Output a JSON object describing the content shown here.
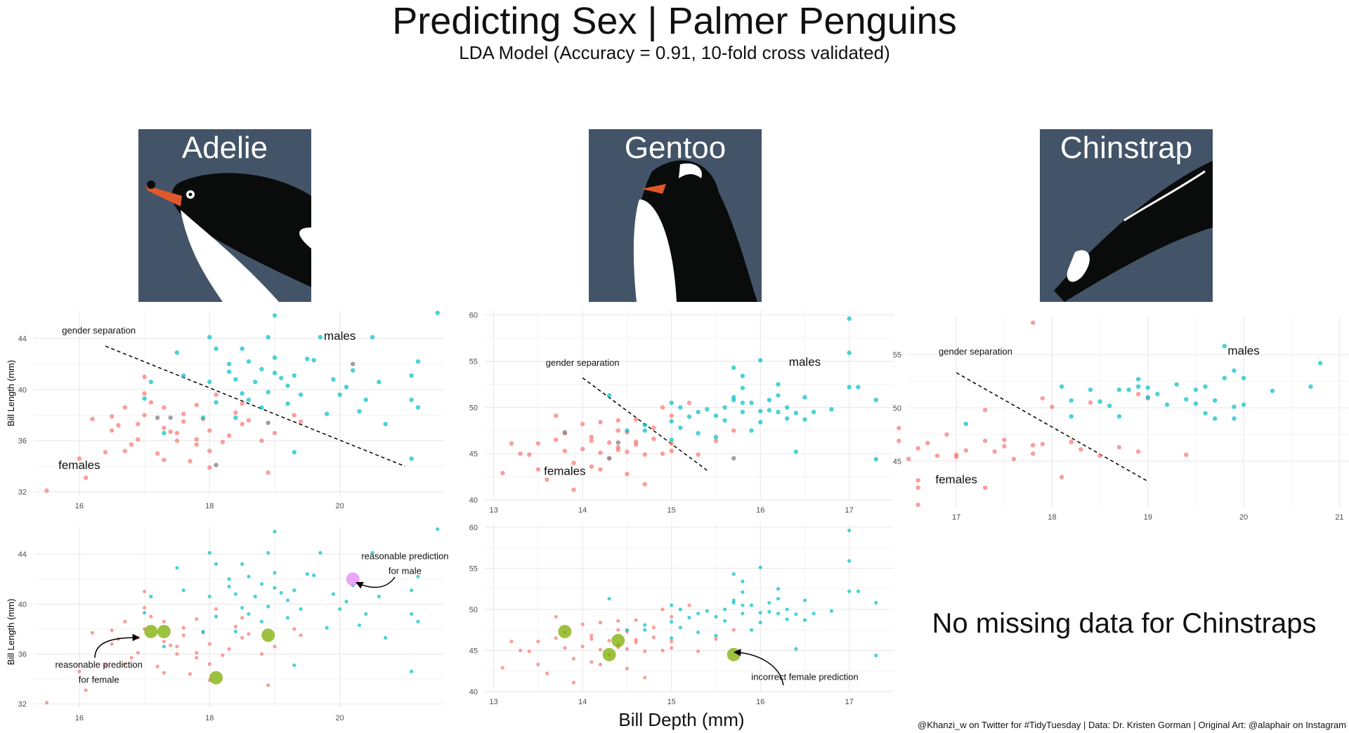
{
  "title": "Predicting Sex | Palmer Penguins",
  "subtitle": "LDA Model (Accuracy = 0.91, 10-fold cross validated)",
  "species": [
    "Adelie",
    "Gentoo",
    "Chinstrap"
  ],
  "x_axis_title": "Bill Depth (mm)",
  "y_axis_title": "Bill Length (mm)",
  "no_missing_text": "No missing data for Chinstraps",
  "caption": "@Khanzi_w on Twitter for #TidyTuesday | Data: Dr. Kristen Gorman | Original Art: @alaphair on Instagram",
  "colors": {
    "female": "#F8766D",
    "male": "#00BFC4",
    "missing": "#888888",
    "predicted": "#7CAE00",
    "predicted_male": "#E68FF8",
    "art_bg": "#435468"
  },
  "chart_data": [
    {
      "panel": "adelie-top",
      "type": "scatter",
      "xlim": [
        15.3,
        21.6
      ],
      "ylim": [
        31.7,
        46.2
      ],
      "xticks": [
        16,
        18,
        20
      ],
      "yticks": [
        32,
        36,
        40,
        44
      ],
      "grid": true,
      "annotations": [
        {
          "text": "gender separation",
          "x": 16.3,
          "y": 44.4
        },
        {
          "text": "females",
          "x": 16.0,
          "y": 33.8
        },
        {
          "text": "males",
          "x": 20.0,
          "y": 43.9
        }
      ],
      "separation_line": {
        "x1": 16.4,
        "y1": 43.4,
        "x2": 21.0,
        "y2": 34.0
      },
      "female": [
        [
          15.5,
          32.1
        ],
        [
          16.1,
          33.1
        ],
        [
          16.7,
          35.2
        ],
        [
          16.9,
          36.1
        ],
        [
          16.5,
          36.8
        ],
        [
          17.2,
          35.0
        ],
        [
          17.5,
          36.6
        ],
        [
          18.0,
          35.2
        ],
        [
          18.3,
          36.4
        ],
        [
          17.8,
          36.1
        ],
        [
          18.5,
          37.3
        ],
        [
          17.3,
          37.0
        ],
        [
          17.0,
          38.0
        ],
        [
          17.6,
          37.5
        ],
        [
          18.0,
          36.8
        ],
        [
          18.4,
          38.2
        ],
        [
          17.8,
          38.8
        ],
        [
          17.1,
          39.0
        ],
        [
          16.7,
          38.6
        ],
        [
          16.5,
          37.9
        ],
        [
          18.6,
          37.6
        ],
        [
          19.0,
          36.6
        ],
        [
          18.8,
          36.0
        ],
        [
          19.3,
          38.0
        ],
        [
          17.7,
          34.4
        ],
        [
          17.4,
          36.7
        ],
        [
          17.0,
          39.7
        ],
        [
          17.9,
          37.7
        ],
        [
          18.1,
          39.6
        ],
        [
          18.5,
          38.9
        ],
        [
          16.9,
          37.3
        ],
        [
          17.6,
          38.1
        ],
        [
          16.2,
          37.7
        ],
        [
          16.6,
          37.2
        ],
        [
          17.3,
          34.5
        ],
        [
          18.0,
          33.9
        ],
        [
          18.9,
          33.5
        ],
        [
          19.4,
          37.5
        ],
        [
          17.5,
          36.0
        ],
        [
          16.8,
          35.7
        ],
        [
          18.2,
          35.9
        ],
        [
          17.8,
          35.7
        ],
        [
          16.4,
          35.1
        ],
        [
          17.0,
          41.0
        ],
        [
          16.0,
          34.6
        ],
        [
          17.3,
          38.6
        ]
      ],
      "male": [
        [
          17.1,
          40.6
        ],
        [
          17.6,
          41.1
        ],
        [
          18.0,
          40.6
        ],
        [
          17.5,
          42.9
        ],
        [
          18.3,
          42.0
        ],
        [
          18.5,
          43.2
        ],
        [
          18.8,
          41.6
        ],
        [
          19.0,
          42.5
        ],
        [
          19.1,
          40.9
        ],
        [
          19.3,
          41.1
        ],
        [
          19.6,
          42.3
        ],
        [
          18.4,
          40.8
        ],
        [
          18.9,
          39.8
        ],
        [
          18.6,
          39.2
        ],
        [
          19.4,
          39.6
        ],
        [
          19.9,
          40.8
        ],
        [
          20.0,
          39.6
        ],
        [
          20.2,
          41.5
        ],
        [
          20.4,
          39.2
        ],
        [
          20.7,
          37.3
        ],
        [
          21.1,
          39.2
        ],
        [
          21.2,
          38.6
        ],
        [
          21.5,
          46.0
        ],
        [
          21.2,
          42.2
        ],
        [
          20.5,
          44.1
        ],
        [
          19.0,
          41.3
        ],
        [
          18.1,
          43.2
        ],
        [
          18.9,
          44.1
        ],
        [
          19.2,
          40.3
        ],
        [
          18.7,
          40.6
        ],
        [
          18.1,
          39.0
        ],
        [
          18.6,
          42.2
        ],
        [
          19.5,
          42.4
        ],
        [
          18.3,
          41.4
        ],
        [
          20.6,
          40.6
        ],
        [
          21.1,
          41.1
        ],
        [
          17.0,
          39.3
        ],
        [
          17.9,
          37.8
        ],
        [
          18.8,
          38.6
        ],
        [
          19.8,
          38.1
        ],
        [
          20.3,
          38.3
        ],
        [
          21.1,
          34.6
        ],
        [
          19.3,
          35.1
        ],
        [
          17.3,
          36.6
        ],
        [
          18.5,
          39.7
        ],
        [
          19.2,
          38.9
        ],
        [
          18.4,
          37.8
        ],
        [
          19.7,
          44.1
        ],
        [
          18.0,
          44.1
        ],
        [
          19.0,
          45.8
        ],
        [
          20.1,
          40.2
        ]
      ],
      "missing": [
        [
          17.2,
          37.8
        ],
        [
          17.4,
          37.8
        ],
        [
          18.1,
          34.1
        ],
        [
          18.9,
          37.4
        ],
        [
          20.2,
          42.0
        ]
      ]
    },
    {
      "panel": "gentoo-top",
      "type": "scatter",
      "xlim": [
        12.9,
        17.5
      ],
      "ylim": [
        40.0,
        60.5
      ],
      "xticks": [
        13,
        14,
        15,
        16,
        17
      ],
      "yticks": [
        40,
        45,
        50,
        55,
        60
      ],
      "grid": true,
      "annotations": [
        {
          "text": "gender separation",
          "x": 14.0,
          "y": 54.5
        },
        {
          "text": "females",
          "x": 13.8,
          "y": 42.7
        },
        {
          "text": "males",
          "x": 16.5,
          "y": 54.5
        }
      ],
      "separation_line": {
        "x1": 14.0,
        "y1": 53.2,
        "x2": 15.4,
        "y2": 43.2
      },
      "female": [
        [
          13.1,
          42.9
        ],
        [
          13.2,
          46.1
        ],
        [
          13.4,
          44.9
        ],
        [
          13.5,
          43.3
        ],
        [
          13.6,
          42.2
        ],
        [
          13.7,
          46.5
        ],
        [
          13.8,
          47.2
        ],
        [
          13.8,
          45.3
        ],
        [
          13.9,
          44.0
        ],
        [
          13.9,
          41.1
        ],
        [
          14.0,
          45.5
        ],
        [
          14.1,
          43.6
        ],
        [
          14.1,
          46.8
        ],
        [
          14.2,
          45.1
        ],
        [
          14.2,
          48.4
        ],
        [
          14.3,
          46.2
        ],
        [
          14.3,
          44.5
        ],
        [
          14.4,
          45.7
        ],
        [
          14.4,
          47.5
        ],
        [
          14.5,
          42.8
        ],
        [
          14.5,
          45.2
        ],
        [
          14.6,
          46.3
        ],
        [
          14.6,
          48.7
        ],
        [
          14.7,
          44.9
        ],
        [
          14.8,
          46.6
        ],
        [
          14.8,
          47.8
        ],
        [
          14.9,
          45.0
        ],
        [
          15.0,
          45.3
        ],
        [
          15.0,
          49.1
        ],
        [
          15.2,
          50.5
        ],
        [
          15.3,
          44.9
        ],
        [
          15.5,
          46.4
        ],
        [
          15.7,
          47.5
        ],
        [
          13.7,
          49.1
        ],
        [
          14.1,
          46.4
        ],
        [
          14.5,
          47.3
        ],
        [
          14.6,
          46.0
        ],
        [
          14.9,
          50.0
        ],
        [
          13.5,
          46.1
        ],
        [
          14.0,
          48.2
        ],
        [
          14.2,
          43.3
        ],
        [
          14.4,
          45.4
        ],
        [
          15.0,
          46.1
        ],
        [
          14.7,
          41.7
        ],
        [
          13.3,
          45.0
        ],
        [
          14.4,
          48.6
        ]
      ],
      "male": [
        [
          14.3,
          51.3
        ],
        [
          14.5,
          47.5
        ],
        [
          14.7,
          48.1
        ],
        [
          15.0,
          48.5
        ],
        [
          15.0,
          50.5
        ],
        [
          15.1,
          50.0
        ],
        [
          15.2,
          49.0
        ],
        [
          15.3,
          49.5
        ],
        [
          15.4,
          49.8
        ],
        [
          15.5,
          46.8
        ],
        [
          15.6,
          50.0
        ],
        [
          15.7,
          51.1
        ],
        [
          15.8,
          49.5
        ],
        [
          15.8,
          52.1
        ],
        [
          15.9,
          50.5
        ],
        [
          16.0,
          49.6
        ],
        [
          16.0,
          48.4
        ],
        [
          16.1,
          50.8
        ],
        [
          16.2,
          52.5
        ],
        [
          16.2,
          49.5
        ],
        [
          16.3,
          50.0
        ],
        [
          16.4,
          49.4
        ],
        [
          16.5,
          51.1
        ],
        [
          16.5,
          48.7
        ],
        [
          16.8,
          49.8
        ],
        [
          17.0,
          52.2
        ],
        [
          17.0,
          55.9
        ],
        [
          17.0,
          59.6
        ],
        [
          17.1,
          52.2
        ],
        [
          17.3,
          50.8
        ],
        [
          17.3,
          44.4
        ],
        [
          15.7,
          54.3
        ],
        [
          15.8,
          53.4
        ],
        [
          16.0,
          55.1
        ],
        [
          16.4,
          45.2
        ],
        [
          15.5,
          49.1
        ],
        [
          15.6,
          48.6
        ],
        [
          16.1,
          49.7
        ],
        [
          16.6,
          49.5
        ],
        [
          15.9,
          47.5
        ],
        [
          15.3,
          47.2
        ],
        [
          15.0,
          46.5
        ],
        [
          14.7,
          47.5
        ],
        [
          15.8,
          50.5
        ],
        [
          16.2,
          51.3
        ],
        [
          15.7,
          50.8
        ],
        [
          16.3,
          48.8
        ],
        [
          15.1,
          47.8
        ]
      ],
      "missing": [
        [
          13.8,
          47.3
        ],
        [
          14.3,
          44.5
        ],
        [
          14.4,
          46.2
        ],
        [
          15.7,
          44.5
        ]
      ]
    },
    {
      "panel": "chinstrap-top",
      "type": "scatter",
      "xlim": [
        16.5,
        21.1
      ],
      "ylim": [
        40.7,
        58.5
      ],
      "xticks": [
        17,
        18,
        19,
        20,
        21
      ],
      "yticks": [
        45,
        50,
        55
      ],
      "grid": true,
      "annotations": [
        {
          "text": "gender separation",
          "x": 17.2,
          "y": 55.0
        },
        {
          "text": "females",
          "x": 17.0,
          "y": 42.9
        },
        {
          "text": "males",
          "x": 20.0,
          "y": 55.0
        }
      ],
      "separation_line": {
        "x1": 17.0,
        "y1": 53.3,
        "x2": 19.0,
        "y2": 43.1
      },
      "female": [
        [
          16.4,
          46.9
        ],
        [
          16.5,
          45.2
        ],
        [
          16.6,
          43.2
        ],
        [
          16.6,
          42.5
        ],
        [
          16.6,
          40.9
        ],
        [
          16.7,
          46.7
        ],
        [
          16.8,
          45.5
        ],
        [
          16.9,
          47.5
        ],
        [
          17.0,
          45.6
        ],
        [
          17.0,
          45.4
        ],
        [
          17.1,
          46.0
        ],
        [
          17.3,
          46.9
        ],
        [
          17.3,
          49.8
        ],
        [
          17.3,
          42.5
        ],
        [
          17.4,
          45.9
        ],
        [
          17.5,
          46.4
        ],
        [
          17.6,
          45.2
        ],
        [
          17.8,
          45.7
        ],
        [
          17.8,
          46.5
        ],
        [
          17.8,
          58.0
        ],
        [
          17.9,
          46.6
        ],
        [
          17.9,
          50.9
        ],
        [
          18.0,
          50.1
        ],
        [
          18.1,
          43.5
        ],
        [
          18.2,
          46.8
        ],
        [
          18.3,
          46.1
        ],
        [
          18.4,
          50.5
        ],
        [
          18.5,
          45.5
        ],
        [
          18.7,
          46.3
        ],
        [
          18.9,
          45.9
        ],
        [
          18.9,
          51.3
        ],
        [
          19.0,
          50.9
        ],
        [
          19.4,
          45.6
        ],
        [
          16.4,
          48.1
        ],
        [
          16.6,
          46.2
        ],
        [
          17.5,
          47.0
        ]
      ],
      "male": [
        [
          17.1,
          48.5
        ],
        [
          18.1,
          52.0
        ],
        [
          18.2,
          49.2
        ],
        [
          18.2,
          50.7
        ],
        [
          18.4,
          51.7
        ],
        [
          18.5,
          50.6
        ],
        [
          18.6,
          50.2
        ],
        [
          18.7,
          49.2
        ],
        [
          18.8,
          51.7
        ],
        [
          18.9,
          52.0
        ],
        [
          19.0,
          51.0
        ],
        [
          19.0,
          51.9
        ],
        [
          19.1,
          51.3
        ],
        [
          19.2,
          50.3
        ],
        [
          19.3,
          52.2
        ],
        [
          19.4,
          50.8
        ],
        [
          19.5,
          51.7
        ],
        [
          19.6,
          52.0
        ],
        [
          19.6,
          49.5
        ],
        [
          19.7,
          50.7
        ],
        [
          19.8,
          52.8
        ],
        [
          19.8,
          55.8
        ],
        [
          19.9,
          50.1
        ],
        [
          19.9,
          53.5
        ],
        [
          20.0,
          52.8
        ],
        [
          20.0,
          50.3
        ],
        [
          20.3,
          51.6
        ],
        [
          20.7,
          52.0
        ],
        [
          20.8,
          54.2
        ],
        [
          18.9,
          52.7
        ],
        [
          19.5,
          50.4
        ],
        [
          19.7,
          49.0
        ],
        [
          19.9,
          49.0
        ],
        [
          18.7,
          51.7
        ]
      ],
      "missing": []
    },
    {
      "panel": "adelie-bottom",
      "type": "scatter",
      "xlim": [
        15.3,
        21.6
      ],
      "ylim": [
        31.7,
        46.2
      ],
      "xticks": [
        16,
        18,
        20
      ],
      "yticks": [
        32,
        36,
        40,
        44
      ],
      "grid": true,
      "annotations": [
        {
          "text": "reasonable prediction",
          "x": 16.3,
          "y": 34.9
        },
        {
          "text": "for female",
          "x": 16.3,
          "y": 33.7
        },
        {
          "text": "reasonable prediction",
          "x": 21.0,
          "y": 43.6
        },
        {
          "text": "for male",
          "x": 21.0,
          "y": 42.4
        }
      ],
      "predicted_female": [
        [
          17.1,
          37.8
        ],
        [
          17.3,
          37.8
        ],
        [
          18.1,
          34.1
        ],
        [
          18.9,
          37.5
        ]
      ],
      "predicted_male": [
        [
          20.2,
          42.0
        ]
      ]
    },
    {
      "panel": "gentoo-bottom",
      "type": "scatter",
      "xlim": [
        12.9,
        17.5
      ],
      "ylim": [
        40.0,
        60.5
      ],
      "xticks": [
        13,
        14,
        15,
        16,
        17
      ],
      "yticks": [
        40,
        45,
        50,
        55,
        60
      ],
      "grid": true,
      "annotations": [
        {
          "text": "incorrect female prediction",
          "x": 16.5,
          "y": 41.4
        }
      ],
      "predicted_female": [
        [
          13.8,
          47.3
        ],
        [
          14.3,
          44.5
        ],
        [
          14.4,
          46.2
        ],
        [
          15.7,
          44.5
        ]
      ],
      "predicted_male": []
    }
  ]
}
